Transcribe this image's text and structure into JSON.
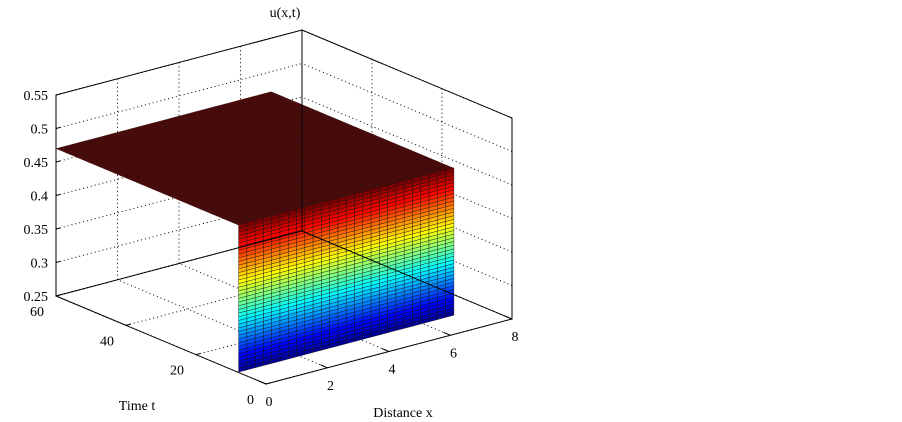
{
  "chart_data": {
    "type": "surface",
    "title": "u(x,t)",
    "xlabel": "Distance x",
    "ylabel": "Time t",
    "zlabel": "",
    "xlim": [
      0,
      8
    ],
    "ylim": [
      0,
      60
    ],
    "zlim": [
      0.25,
      0.55
    ],
    "x_ticks": [
      "0",
      "2",
      "4",
      "6",
      "8"
    ],
    "y_ticks": [
      "0",
      "20",
      "40",
      "60"
    ],
    "z_ticks": [
      "0.25",
      "0.3",
      "0.35",
      "0.4",
      "0.45",
      "0.5",
      "0.55"
    ],
    "grid": true,
    "colormap": "jet",
    "surface_color": "#4a0a0a",
    "surface": {
      "x_range": [
        0,
        7
      ],
      "t_range": [
        0,
        60
      ],
      "description_values": {
        "plateau_u": 0.47,
        "low_u": 0.25,
        "front_x": 0.35
      }
    }
  }
}
